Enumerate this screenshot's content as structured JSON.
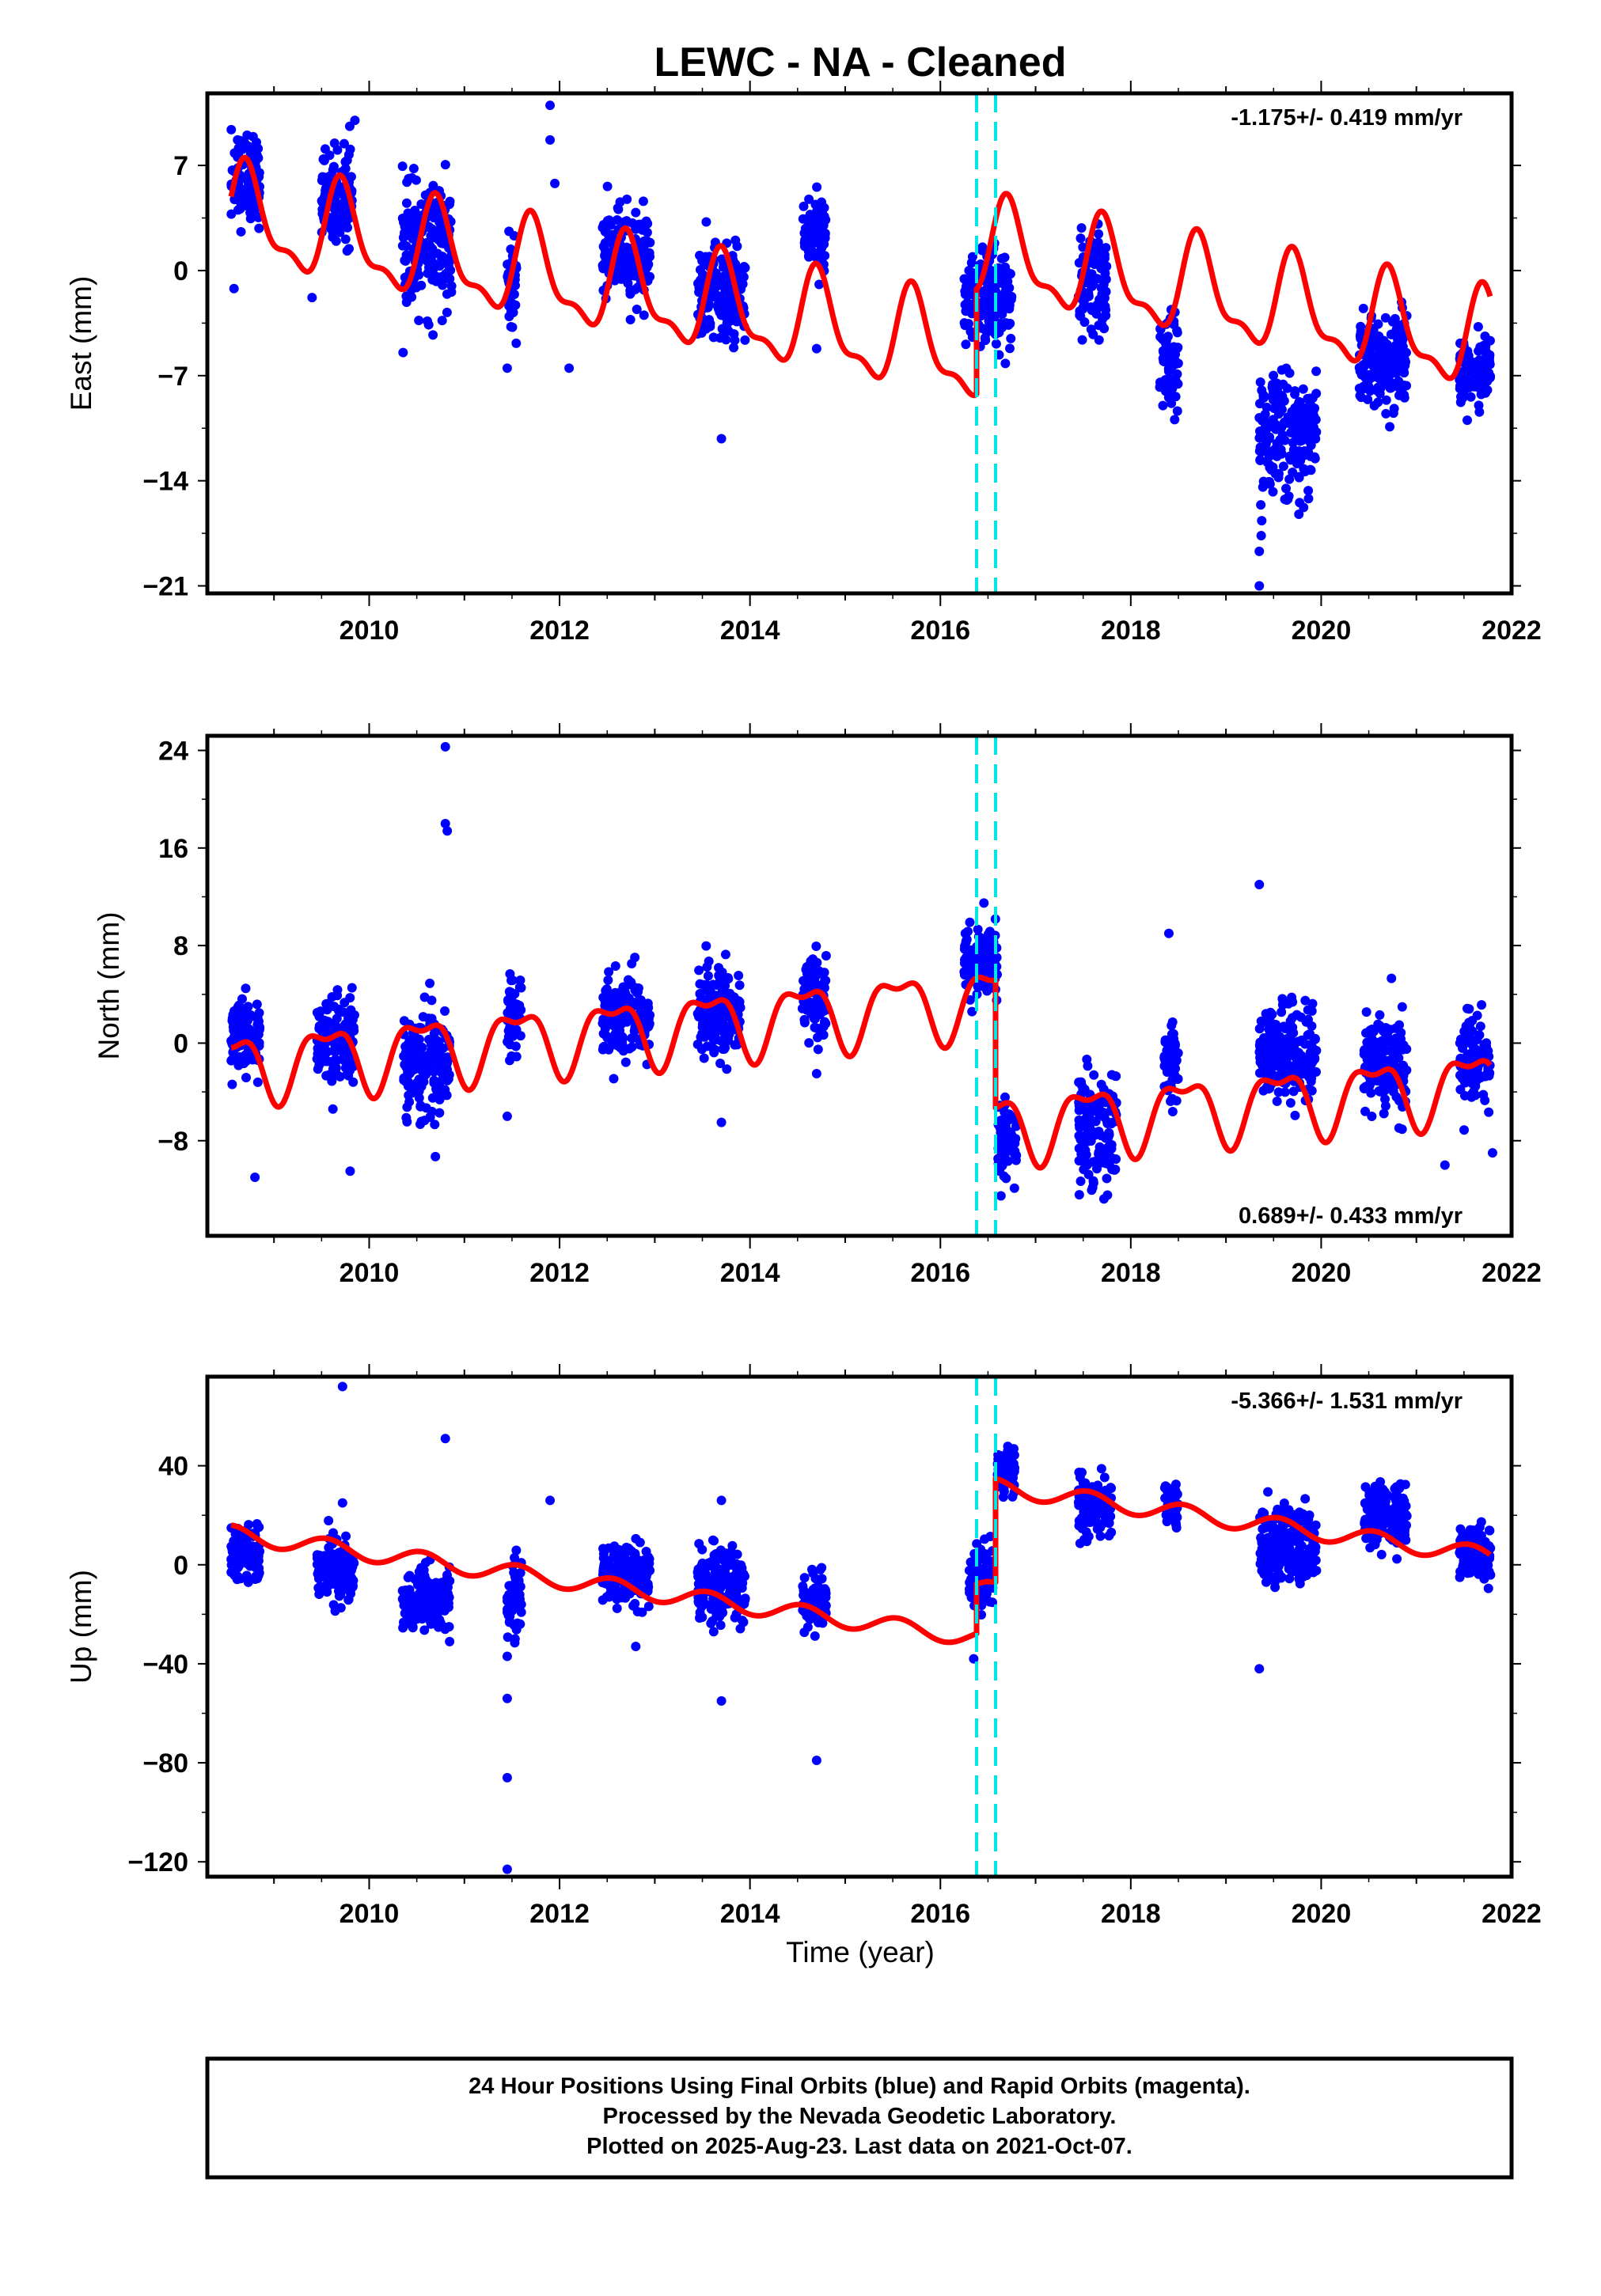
{
  "title": "LEWC  - NA - Cleaned",
  "x_axis_label": "Time (year)",
  "footer": {
    "line1": "24 Hour Positions Using Final Orbits (blue) and Rapid Orbits (magenta).",
    "line2": "Processed by the Nevada Geodetic Laboratory.",
    "line3": "Plotted on 2025-Aug-23. Last data on 2021-Oct-07."
  },
  "colors": {
    "data": "#0000ff",
    "model": "#ff0000",
    "steps": "#00e5e5"
  },
  "chart_data": [
    {
      "type": "scatter",
      "ylabel": "East (mm)",
      "rate": "-1.175+/- 0.419 mm/yr",
      "rate_position": "top-right",
      "xlim": [
        2008.3,
        2022.0
      ],
      "ylim": [
        -21.5,
        11.8
      ],
      "xticks": [
        2010,
        2012,
        2014,
        2016,
        2018,
        2020,
        2022
      ],
      "yticks": [
        7,
        0,
        -7,
        -14,
        -21
      ],
      "ytick_labels": [
        "7",
        "0",
        "−7",
        "−14",
        "−21"
      ],
      "steps": [
        2016.38,
        2016.58
      ],
      "model": {
        "t0": 2012.0,
        "offset": -0.5,
        "rate": -1.175,
        "annual_amp": 3.0,
        "annual_peak": 0.72,
        "semi_amp": 1.2,
        "semi_peak": 0.18,
        "breaks": [
          [
            2016.38,
            7.0
          ]
        ]
      },
      "clusters": [
        [
          2008.55,
          2008.85,
          6.2,
          1.5
        ],
        [
          2009.5,
          2009.82,
          5.0,
          1.6
        ],
        [
          2010.35,
          2010.88,
          1.5,
          2.0
        ],
        [
          2011.45,
          2011.55,
          -1.0,
          1.5
        ],
        [
          2012.45,
          2012.95,
          1.0,
          1.5
        ],
        [
          2013.45,
          2013.95,
          -1.5,
          1.5
        ],
        [
          2014.55,
          2014.8,
          2.5,
          1.2
        ],
        [
          2016.25,
          2016.75,
          -2.0,
          1.6
        ],
        [
          2017.45,
          2017.75,
          -1.0,
          1.8
        ],
        [
          2018.3,
          2018.5,
          -6.0,
          1.5
        ],
        [
          2019.35,
          2019.95,
          -11.0,
          2.0
        ],
        [
          2020.4,
          2020.9,
          -6.0,
          1.5
        ],
        [
          2021.45,
          2021.78,
          -7.0,
          1.2
        ]
      ],
      "outliers": [
        [
          2008.58,
          -1.2
        ],
        [
          2009.4,
          -1.8
        ],
        [
          2009.85,
          10.0
        ],
        [
          2011.45,
          -6.5
        ],
        [
          2011.9,
          11.0
        ],
        [
          2011.9,
          8.7
        ],
        [
          2011.95,
          5.8
        ],
        [
          2012.1,
          -6.5
        ],
        [
          2013.7,
          -11.2
        ],
        [
          2014.7,
          -5.2
        ],
        [
          2019.35,
          -21.0
        ],
        [
          2019.35,
          -18.7
        ]
      ]
    },
    {
      "type": "scatter",
      "ylabel": "North (mm)",
      "rate": "0.689+/- 0.433 mm/yr",
      "rate_position": "bottom-right",
      "xlim": [
        2008.3,
        2022.0
      ],
      "ylim": [
        -15.8,
        25.2
      ],
      "xticks": [
        2010,
        2012,
        2014,
        2016,
        2018,
        2020,
        2022
      ],
      "yticks": [
        24,
        16,
        8,
        0,
        -8
      ],
      "ytick_labels": [
        "24",
        "16",
        "8",
        "0",
        "−8"
      ],
      "steps": [
        2016.38,
        2016.58
      ],
      "model": {
        "t0": 2012.0,
        "offset": 0.5,
        "rate": 0.689,
        "annual_amp": 2.6,
        "annual_peak": 0.55,
        "semi_amp": 1.1,
        "semi_peak": 0.3,
        "breaks": [
          [
            2016.58,
            -10.5
          ]
        ]
      },
      "clusters": [
        [
          2008.55,
          2008.85,
          0.5,
          1.6
        ],
        [
          2009.45,
          2009.85,
          0.0,
          1.8
        ],
        [
          2010.35,
          2010.85,
          -2.0,
          2.2
        ],
        [
          2011.45,
          2011.6,
          2.5,
          1.5
        ],
        [
          2012.45,
          2012.95,
          2.5,
          1.6
        ],
        [
          2013.45,
          2013.9,
          2.5,
          2.0
        ],
        [
          2014.55,
          2014.8,
          4.0,
          1.5
        ],
        [
          2016.25,
          2016.6,
          6.5,
          1.4
        ],
        [
          2016.6,
          2016.8,
          -8.0,
          1.8
        ],
        [
          2017.45,
          2017.85,
          -7.0,
          2.5
        ],
        [
          2018.35,
          2018.5,
          -2.0,
          1.5
        ],
        [
          2019.35,
          2019.95,
          -1.0,
          2.0
        ],
        [
          2020.45,
          2020.9,
          -1.5,
          1.8
        ],
        [
          2021.45,
          2021.78,
          -1.5,
          1.8
        ]
      ],
      "outliers": [
        [
          2008.8,
          -11.0
        ],
        [
          2009.8,
          -10.5
        ],
        [
          2010.8,
          24.3
        ],
        [
          2010.8,
          18.0
        ],
        [
          2010.82,
          17.4
        ],
        [
          2011.45,
          -6.0
        ],
        [
          2013.7,
          -6.5
        ],
        [
          2014.7,
          -2.5
        ],
        [
          2018.4,
          9.0
        ],
        [
          2019.35,
          13.0
        ],
        [
          2021.3,
          -10.0
        ],
        [
          2021.8,
          -9.0
        ]
      ]
    },
    {
      "type": "scatter",
      "ylabel": "Up (mm)",
      "rate": "-5.366+/- 1.531 mm/yr",
      "rate_position": "top-right",
      "xlim": [
        2008.3,
        2022.0
      ],
      "ylim": [
        -126,
        76
      ],
      "xticks": [
        2010,
        2012,
        2014,
        2016,
        2018,
        2020,
        2022
      ],
      "yticks": [
        40,
        0,
        -40,
        -80,
        -120
      ],
      "ytick_labels": [
        "40",
        "0",
        "−40",
        "−80",
        "−120"
      ],
      "steps": [
        2016.38,
        2016.58
      ],
      "model": {
        "t0": 2012.0,
        "offset": -6.0,
        "rate": -5.366,
        "annual_amp": 3.5,
        "annual_peak": 0.55,
        "semi_amp": 0.0,
        "semi_peak": 0.0,
        "breaks": [
          [
            2016.38,
            20.0
          ],
          [
            2016.58,
            42.0
          ]
        ]
      },
      "clusters": [
        [
          2008.55,
          2008.85,
          5.0,
          6.0
        ],
        [
          2009.45,
          2009.85,
          -2.0,
          6.0
        ],
        [
          2010.35,
          2010.85,
          -15.0,
          7.0
        ],
        [
          2011.45,
          2011.6,
          -15.0,
          7.0
        ],
        [
          2012.45,
          2012.95,
          -5.0,
          6.0
        ],
        [
          2013.45,
          2013.95,
          -8.0,
          7.0
        ],
        [
          2014.55,
          2014.8,
          -15.0,
          5.0
        ],
        [
          2016.3,
          2016.55,
          -5.0,
          6.0
        ],
        [
          2016.6,
          2016.78,
          38.0,
          5.0
        ],
        [
          2017.45,
          2017.8,
          24.0,
          6.0
        ],
        [
          2018.35,
          2018.5,
          24.0,
          4.0
        ],
        [
          2019.35,
          2019.95,
          7.0,
          8.0
        ],
        [
          2020.45,
          2020.9,
          20.0,
          6.0
        ],
        [
          2021.45,
          2021.78,
          5.0,
          5.0
        ]
      ],
      "outliers": [
        [
          2009.72,
          72.0
        ],
        [
          2009.72,
          25.0
        ],
        [
          2010.8,
          51.0
        ],
        [
          2011.45,
          -86.0
        ],
        [
          2011.45,
          -123.0
        ],
        [
          2011.45,
          -54.0
        ],
        [
          2011.45,
          -37.0
        ],
        [
          2011.9,
          26.0
        ],
        [
          2012.8,
          -33.0
        ],
        [
          2013.7,
          -55.0
        ],
        [
          2013.7,
          26.0
        ],
        [
          2014.7,
          -79.0
        ],
        [
          2016.35,
          -38.0
        ],
        [
          2019.35,
          -42.0
        ]
      ]
    }
  ]
}
